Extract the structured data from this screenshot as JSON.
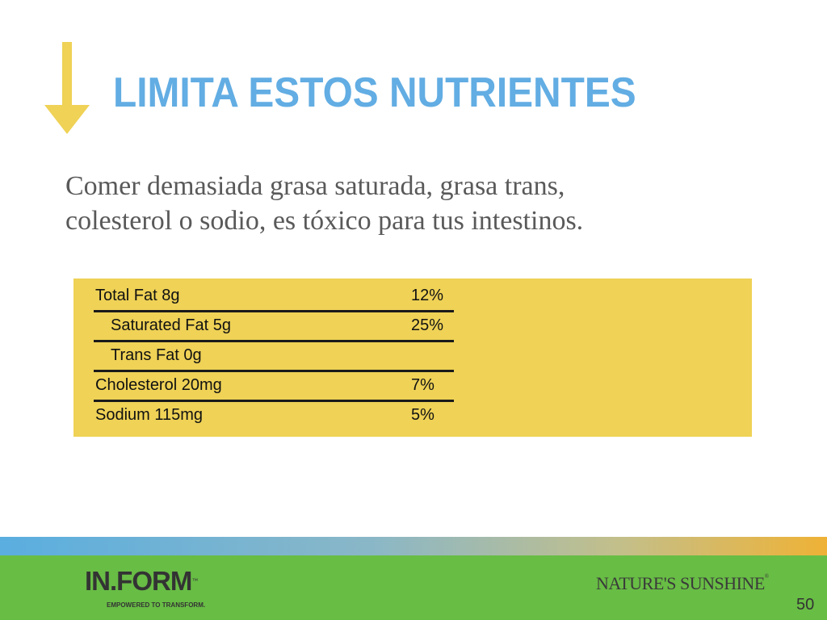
{
  "slide": {
    "title": "LIMITA ESTOS NUTRIENTES",
    "body_line_1": "Comer demasiada grasa saturada, grasa trans,",
    "body_line_2": "colesterol o sodio, es tóxico para tus intestinos.",
    "accent_colors": {
      "title": "#62ade3",
      "arrow": "#efd256",
      "panel": "#efd256",
      "footer": "#68bd45"
    }
  },
  "nutrition": {
    "rows": [
      {
        "label": "Total Fat 8g",
        "value": "12%"
      },
      {
        "label": "Saturated Fat 5g",
        "value": "25%"
      },
      {
        "label": "Trans Fat 0g",
        "value": ""
      },
      {
        "label": "Cholesterol 20mg",
        "value": "7%"
      },
      {
        "label": "Sodium 115mg",
        "value": "5%"
      }
    ]
  },
  "footer": {
    "logo_text": "IN.FORM",
    "logo_trademark": "™",
    "tagline": "EMPOWERED TO TRANSFORM.",
    "brand_text": "NATURE'S SUNSHINE",
    "brand_trademark": "®",
    "page_number": "50"
  },
  "icons": {
    "arrow": "down-arrow-icon"
  }
}
